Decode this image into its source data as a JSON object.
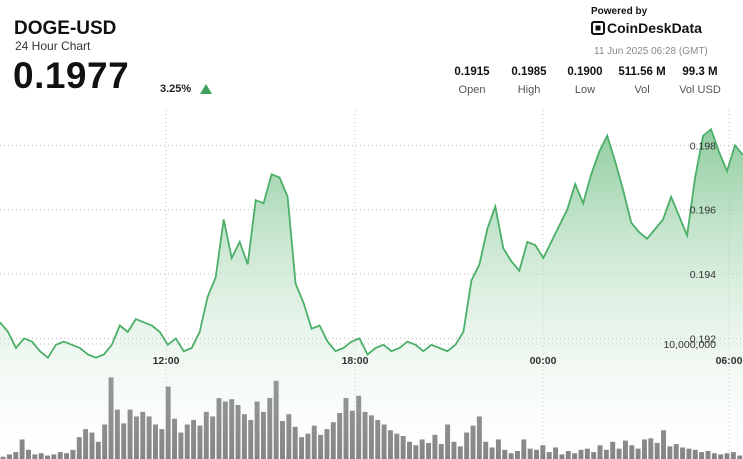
{
  "header": {
    "ticker": "DOGE-USD",
    "subtitle": "24 Hour Chart",
    "price": "0.1977",
    "change": "3.25%",
    "change_icon": "up-triangle-icon"
  },
  "branding": {
    "powered_by": "Powered by",
    "brand": "CoinDeskData",
    "logo_icon": "coindesk-logo-icon",
    "timestamp": "11 Jun 2025 06:28 (GMT)"
  },
  "stats": [
    {
      "value": "0.1915",
      "label": "Open"
    },
    {
      "value": "0.1985",
      "label": "High"
    },
    {
      "value": "0.1900",
      "label": "Low"
    },
    {
      "value": "511.56 M",
      "label": "Vol"
    },
    {
      "value": "99.3 M",
      "label": "Vol USD"
    }
  ],
  "colors": {
    "line": "#4caf68",
    "fill_top": "#7cc48e",
    "fill_bottom": "#ffffff",
    "volume_bar": "#6b6b6b",
    "up_arrow": "#3ea35a"
  },
  "chart_data": {
    "type": "area",
    "price_axis": {
      "ticks": [
        "0.198",
        "0.196",
        "0.194",
        "0.192"
      ],
      "tick_values": [
        0.198,
        0.196,
        0.194,
        0.192
      ],
      "range": [
        0.18825,
        0.1991
      ]
    },
    "time_axis": {
      "labels": [
        "12:00",
        "18:00",
        "00:00",
        "06:00"
      ]
    },
    "volume_axis": {
      "label": "10,000,000",
      "value": 10000000
    },
    "price": [
      0.1925,
      0.1922,
      0.1917,
      0.192,
      0.1919,
      0.1916,
      0.1914,
      0.1918,
      0.1919,
      0.1918,
      0.1917,
      0.1915,
      0.1914,
      0.1915,
      0.1918,
      0.1924,
      0.1922,
      0.1926,
      0.1925,
      0.1924,
      0.1922,
      0.1918,
      0.192,
      0.1916,
      0.1917,
      0.1922,
      0.1933,
      0.1939,
      0.1957,
      0.1945,
      0.195,
      0.1943,
      0.1963,
      0.1962,
      0.1971,
      0.197,
      0.1964,
      0.1937,
      0.1931,
      0.1923,
      0.1924,
      0.1919,
      0.1916,
      0.1917,
      0.1919,
      0.192,
      0.1915,
      0.1917,
      0.1918,
      0.1916,
      0.1917,
      0.1919,
      0.1918,
      0.1916,
      0.1918,
      0.1917,
      0.1916,
      0.1918,
      0.1922,
      0.1938,
      0.1943,
      0.1954,
      0.1961,
      0.1948,
      0.1944,
      0.1941,
      0.195,
      0.1949,
      0.1945,
      0.195,
      0.1955,
      0.196,
      0.1968,
      0.1962,
      0.1971,
      0.1978,
      0.1983,
      0.1975,
      0.1966,
      0.1956,
      0.1953,
      0.1951,
      0.1954,
      0.1957,
      0.1964,
      0.1958,
      0.1952,
      0.197,
      0.1983,
      0.1985,
      0.1978,
      0.1972,
      0.198,
      0.1977
    ],
    "volume": [
      0.2,
      0.4,
      0.6,
      1.7,
      0.8,
      0.4,
      0.5,
      0.3,
      0.4,
      0.6,
      0.5,
      0.8,
      1.9,
      2.6,
      2.3,
      1.5,
      3.0,
      7.1,
      4.3,
      3.1,
      4.3,
      3.7,
      4.1,
      3.7,
      3.0,
      2.6,
      6.3,
      3.5,
      2.3,
      3.0,
      3.4,
      2.9,
      4.1,
      3.7,
      5.3,
      5.0,
      5.2,
      4.7,
      3.9,
      3.4,
      5.0,
      4.1,
      5.3,
      6.8,
      3.3,
      3.9,
      2.8,
      1.9,
      2.2,
      2.9,
      2.1,
      2.6,
      3.2,
      4.0,
      5.3,
      4.2,
      5.5,
      4.1,
      3.8,
      3.4,
      3.0,
      2.5,
      2.2,
      2.0,
      1.5,
      1.2,
      1.7,
      1.4,
      2.1,
      1.3,
      3.0,
      1.5,
      1.1,
      2.3,
      2.9,
      3.7,
      1.5,
      1.0,
      1.7,
      0.8,
      0.5,
      0.7,
      1.7,
      0.9,
      0.8,
      1.2,
      0.6,
      1.0,
      0.4,
      0.7,
      0.5,
      0.8,
      0.9,
      0.6,
      1.2,
      0.8,
      1.5,
      0.9,
      1.6,
      1.2,
      0.9,
      1.7,
      1.8,
      1.4,
      2.5,
      1.1,
      1.3,
      1.0,
      0.9,
      0.8,
      0.6,
      0.7,
      0.5,
      0.4,
      0.5,
      0.6,
      0.3
    ]
  }
}
